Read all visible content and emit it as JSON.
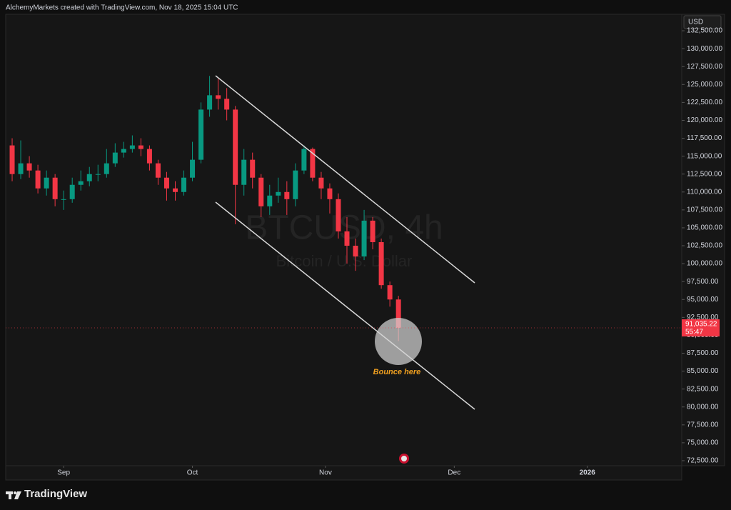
{
  "header": {
    "text": "AlchemyMarkets created with TradingView.com, Nov 18, 2025 15:04 UTC"
  },
  "chart_data": {
    "type": "candlestick",
    "title": "BTCUSD, 4h",
    "subtitle": "Bitcoin / U.S. Dollar",
    "currency": "USD",
    "x": [
      -12,
      -10,
      -8,
      -6,
      -4,
      -2,
      0,
      2,
      4,
      6,
      8,
      10,
      12,
      14,
      16,
      18,
      20,
      22,
      24,
      26,
      28,
      30,
      32,
      34,
      36,
      38,
      40,
      42,
      44,
      46,
      48,
      50,
      52,
      54,
      56,
      58,
      60,
      62,
      64,
      66,
      68,
      70,
      72,
      74,
      76,
      78
    ],
    "open": [
      116500,
      112500,
      114000,
      113000,
      110500,
      112000,
      109000,
      109000,
      111000,
      111500,
      112500,
      112500,
      114000,
      115500,
      116000,
      116500,
      116000,
      114000,
      112000,
      110500,
      110000,
      112000,
      114500,
      121500,
      123500,
      123000,
      121500,
      111000,
      114500,
      112000,
      108000,
      109500,
      110000,
      109000,
      113000,
      116000,
      112000,
      110500,
      109000,
      104500,
      102500,
      101000,
      106000,
      103000,
      97000,
      95000
    ],
    "high": [
      117500,
      117200,
      115000,
      113800,
      113000,
      112500,
      110200,
      112000,
      113000,
      113500,
      113800,
      116000,
      116800,
      117000,
      117900,
      117500,
      116500,
      114500,
      112800,
      111500,
      113000,
      117000,
      122500,
      126200,
      125800,
      124500,
      122000,
      116000,
      115500,
      112500,
      111000,
      112000,
      111500,
      114000,
      116500,
      116200,
      112800,
      111200,
      109800,
      106500,
      103500,
      107500,
      106500,
      103500,
      97500,
      95500
    ],
    "low": [
      111500,
      111800,
      112000,
      109800,
      109500,
      108000,
      107500,
      108500,
      110200,
      110800,
      111500,
      112000,
      113500,
      114800,
      115500,
      115000,
      113000,
      111000,
      108800,
      108800,
      109500,
      111500,
      114000,
      120500,
      121500,
      120000,
      105500,
      109500,
      110500,
      106500,
      106800,
      108500,
      106800,
      108000,
      112500,
      111500,
      109000,
      107000,
      103500,
      100000,
      99000,
      100500,
      102000,
      96500,
      94000,
      89200
    ],
    "close": [
      112500,
      114000,
      113000,
      110500,
      112000,
      109000,
      109000,
      111000,
      111500,
      112500,
      112500,
      114000,
      115500,
      116000,
      116500,
      116000,
      114000,
      112000,
      110500,
      110000,
      112000,
      114500,
      121500,
      123500,
      123000,
      121500,
      111000,
      114500,
      112000,
      108000,
      109500,
      110000,
      109000,
      113000,
      116000,
      112000,
      110500,
      109000,
      104500,
      102500,
      101000,
      106000,
      103000,
      97000,
      95000,
      91035.22
    ],
    "up_color": "#089981",
    "down_color": "#f23645",
    "xlim": [
      -13.5,
      144
    ],
    "xticks": [
      {
        "value": 0,
        "label": "Sep"
      },
      {
        "value": 30,
        "label": "Oct"
      },
      {
        "value": 61,
        "label": "Nov"
      },
      {
        "value": 91,
        "label": "Dec"
      },
      {
        "value": 122,
        "label": "2026"
      }
    ],
    "ylim": [
      71800,
      134800
    ],
    "yticks": [
      {
        "value": 72500,
        "label": "72,500.00"
      },
      {
        "value": 75000,
        "label": "75,000.00"
      },
      {
        "value": 77500,
        "label": "77,500.00"
      },
      {
        "value": 80000,
        "label": "80,000.00"
      },
      {
        "value": 82500,
        "label": "82,500.00"
      },
      {
        "value": 85000,
        "label": "85,000.00"
      },
      {
        "value": 87500,
        "label": "87,500.00"
      },
      {
        "value": 90000,
        "label": "90,000.00"
      },
      {
        "value": 92500,
        "label": "92,500.00"
      },
      {
        "value": 95000,
        "label": "95,000.00"
      },
      {
        "value": 97500,
        "label": "97,500.00"
      },
      {
        "value": 100000,
        "label": "100,000.00"
      },
      {
        "value": 102500,
        "label": "102,500.00"
      },
      {
        "value": 105000,
        "label": "105,000.00"
      },
      {
        "value": 107500,
        "label": "107,500.00"
      },
      {
        "value": 110000,
        "label": "110,000.00"
      },
      {
        "value": 112500,
        "label": "112,500.00"
      },
      {
        "value": 115000,
        "label": "115,000.00"
      },
      {
        "value": 117500,
        "label": "117,500.00"
      },
      {
        "value": 120000,
        "label": "120,000.00"
      },
      {
        "value": 122500,
        "label": "122,500.00"
      },
      {
        "value": 125000,
        "label": "125,000.00"
      },
      {
        "value": 127500,
        "label": "127,500.00"
      },
      {
        "value": 130000,
        "label": "130,000.00"
      },
      {
        "value": 132500,
        "label": "132,500.00"
      }
    ],
    "last_price_label": "91,035.22",
    "countdown": "55:47",
    "annotation": "Bounce here"
  },
  "footer": {
    "logo": "TradingView"
  }
}
